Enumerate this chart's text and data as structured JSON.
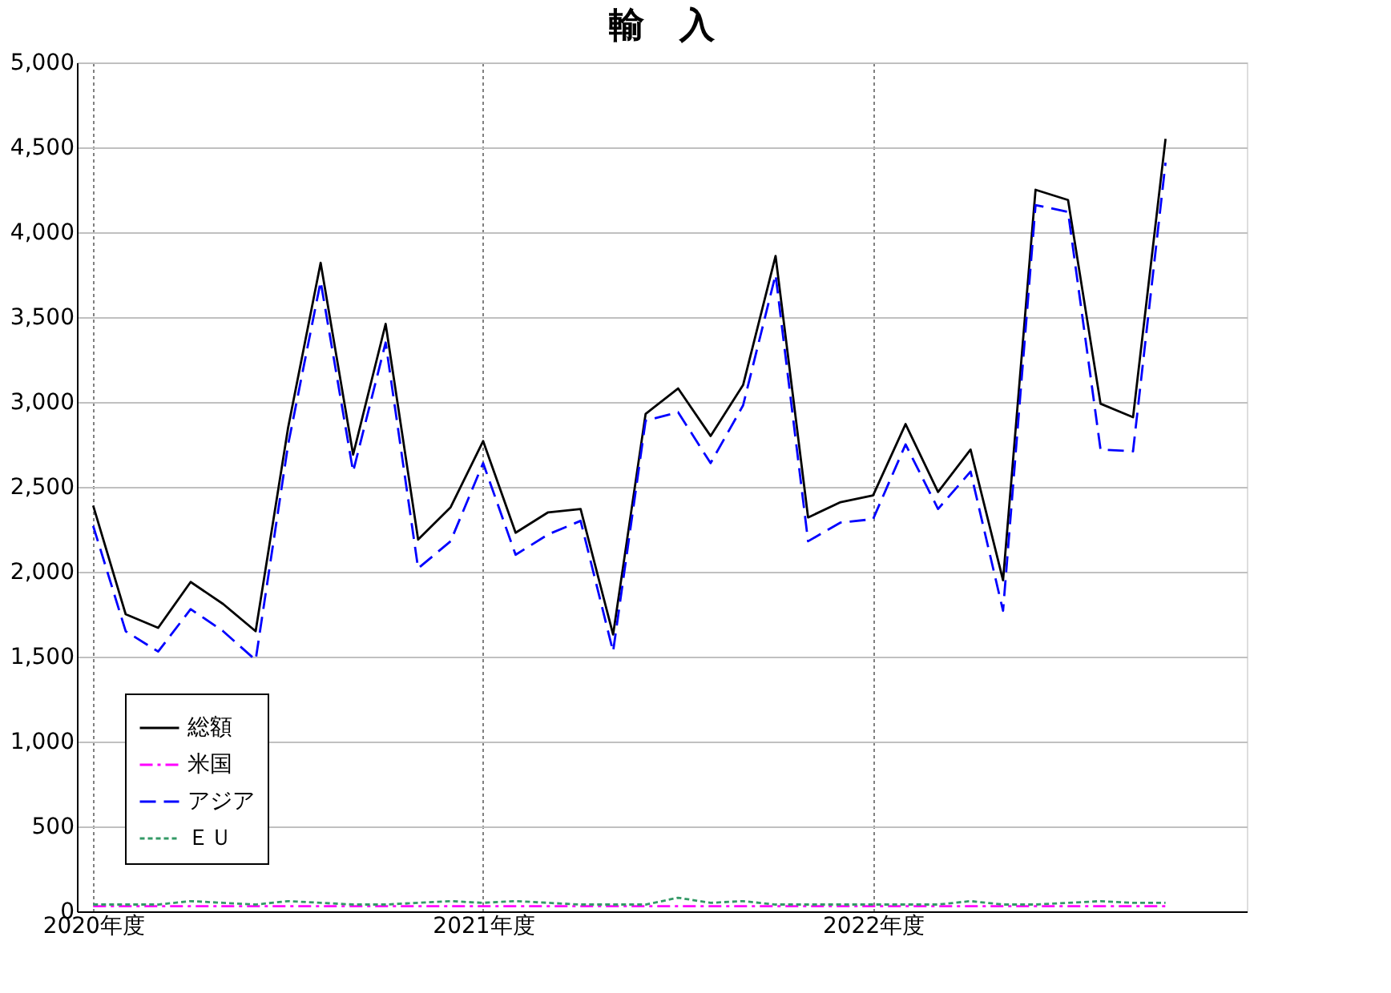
{
  "chart_data": {
    "type": "line",
    "title": "輸　入",
    "categories": [
      "2020年度",
      null,
      null,
      null,
      null,
      null,
      null,
      null,
      null,
      null,
      null,
      null,
      "2021年度",
      null,
      null,
      null,
      null,
      null,
      null,
      null,
      null,
      null,
      null,
      null,
      "2022年度",
      null,
      null,
      null,
      null,
      null,
      null,
      null,
      null,
      null,
      null,
      null
    ],
    "series": [
      {
        "name": "総額",
        "color": "#000000",
        "line_style": "solid",
        "values": [
          2390,
          1750,
          1670,
          1940,
          1810,
          1650,
          2850,
          3820,
          2690,
          3460,
          2190,
          2380,
          2770,
          2230,
          2350,
          2370,
          1630,
          2930,
          3080,
          2800,
          3100,
          3860,
          2320,
          2410,
          2450,
          2870,
          2470,
          2720,
          1950,
          4250,
          4190,
          2990,
          2910,
          4550,
          null,
          null
        ]
      },
      {
        "name": "米国",
        "color": "#ff00ff",
        "line_style": "dashdot",
        "values": [
          30,
          30,
          30,
          30,
          30,
          30,
          30,
          30,
          30,
          30,
          30,
          30,
          30,
          30,
          30,
          30,
          30,
          30,
          30,
          30,
          30,
          30,
          30,
          30,
          30,
          30,
          30,
          30,
          30,
          30,
          30,
          30,
          30,
          30,
          null,
          null
        ]
      },
      {
        "name": "アジア",
        "color": "#0000ff",
        "line_style": "dashed",
        "values": [
          2270,
          1650,
          1530,
          1780,
          1650,
          1480,
          2750,
          3710,
          2590,
          3350,
          2020,
          2180,
          2640,
          2100,
          2220,
          2300,
          1530,
          2890,
          2940,
          2640,
          2980,
          3750,
          2180,
          2290,
          2310,
          2750,
          2370,
          2590,
          1770,
          4160,
          4120,
          2720,
          2710,
          4410,
          null,
          null
        ]
      },
      {
        "name": "ＥＵ",
        "color": "#339966",
        "line_style": "dotted",
        "values": [
          40,
          40,
          40,
          60,
          50,
          40,
          60,
          50,
          40,
          40,
          50,
          60,
          50,
          60,
          50,
          40,
          40,
          40,
          80,
          50,
          60,
          40,
          40,
          40,
          40,
          40,
          40,
          60,
          40,
          40,
          50,
          60,
          50,
          50,
          null,
          null
        ]
      }
    ],
    "ylim": [
      0,
      5000
    ],
    "yticks": [
      0,
      500,
      {
        "value": 1000,
        "label": "1,000"
      },
      {
        "value": 1500,
        "label": "1,500"
      },
      {
        "value": 2000,
        "label": "2,000"
      },
      {
        "value": 2500,
        "label": "2,500"
      },
      {
        "value": 3000,
        "label": "3,000"
      },
      {
        "value": 3500,
        "label": "3,500"
      },
      {
        "value": 4000,
        "label": "4,000"
      },
      {
        "value": 4500,
        "label": "4,500"
      },
      {
        "value": 5000,
        "label": "5,000"
      }
    ],
    "grid": true,
    "legend": "bottom left"
  }
}
